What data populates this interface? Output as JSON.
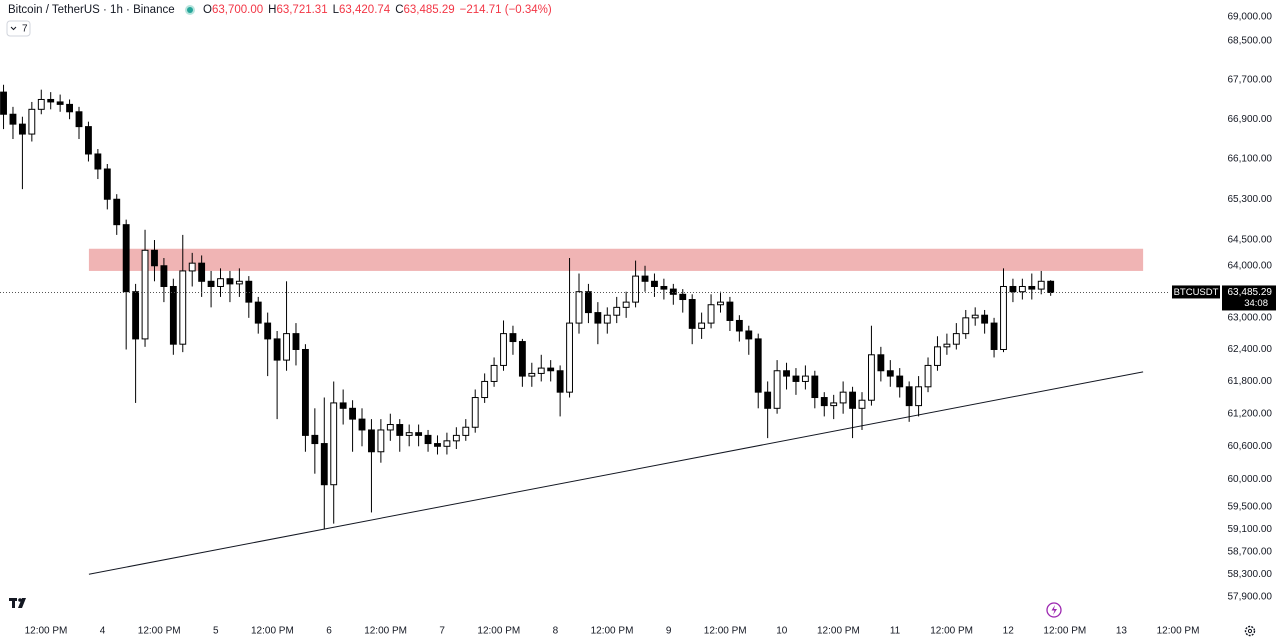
{
  "chart_data": {
    "type": "candlestick",
    "title": "Bitcoin / TetherUS · 1h · Binance",
    "ohlc": [
      {
        "label": "O",
        "value": "63,700.00"
      },
      {
        "label": "H",
        "value": "63,721.31"
      },
      {
        "label": "L",
        "value": "63,420.74"
      },
      {
        "label": "C",
        "value": "63,485.29"
      }
    ],
    "change": "−214.71 (−0.34%)",
    "indicator_count": "7",
    "price_tag": {
      "symbol": "BTCUSDT",
      "price": "63,485.29",
      "countdown": "34:08"
    },
    "log_scale": true,
    "up_color": "#ffffff",
    "down_color": "#000000",
    "x": [
      -9,
      -7,
      -5,
      -3,
      -1,
      1,
      3,
      5,
      7,
      9,
      11,
      13,
      15,
      17,
      19,
      21,
      23,
      25,
      27,
      29,
      31,
      33,
      35,
      37,
      39,
      41,
      43,
      45,
      47,
      49,
      51,
      53,
      55,
      57,
      59,
      61,
      63,
      65,
      67,
      69,
      71,
      73,
      75,
      77,
      79,
      81,
      83,
      85,
      87,
      89,
      91,
      93,
      95,
      97,
      99,
      101,
      103,
      105,
      107,
      109,
      111,
      113,
      115,
      117,
      119,
      121,
      123,
      125,
      127,
      129,
      131,
      133,
      135,
      137,
      139,
      141,
      143,
      145,
      147,
      149,
      151,
      153,
      155,
      157,
      159,
      161,
      163,
      165,
      167,
      169,
      171,
      173,
      175,
      177,
      179,
      181,
      183,
      185,
      187,
      189,
      191,
      193,
      195,
      197,
      199,
      201,
      203,
      205,
      207,
      209,
      211,
      213
    ],
    "open": [
      67450,
      67000,
      66800,
      66600,
      67100,
      67300,
      67250,
      67200,
      67050,
      66750,
      66200,
      65900,
      65300,
      64800,
      63500,
      62600,
      64300,
      64000,
      63600,
      62500,
      63900,
      64050,
      63700,
      63600,
      63750,
      63650,
      63700,
      63300,
      62900,
      62600,
      62200,
      62700,
      62400,
      60800,
      60650,
      59900,
      61400,
      61300,
      61100,
      60900,
      60500,
      60900,
      61000,
      60800,
      60850,
      60800,
      60650,
      60600,
      60700,
      60800,
      60950,
      61500,
      61800,
      62100,
      62700,
      62550,
      61900,
      61950,
      62050,
      62000,
      61600,
      62900,
      63500,
      63100,
      62900,
      63050,
      63200,
      63300,
      63800,
      63700,
      63600,
      63550,
      63450,
      63350,
      62800,
      62900,
      63250,
      63300,
      62950,
      62750,
      62600,
      61600,
      61300,
      62000,
      61900,
      61800,
      61900,
      61500,
      61350,
      61400,
      61600,
      61300,
      61450,
      62300,
      62000,
      61900,
      61700,
      61350,
      61700,
      62100,
      62450,
      62500,
      62700,
      63000,
      63050,
      62900,
      62400,
      63600,
      63500,
      63600,
      63550,
      63700
    ],
    "high": [
      67600,
      67150,
      66950,
      67250,
      67500,
      67450,
      67400,
      67300,
      67150,
      66850,
      66300,
      66000,
      65400,
      64900,
      63650,
      64700,
      64500,
      64150,
      63750,
      64600,
      64250,
      64200,
      63900,
      63950,
      63900,
      63950,
      63800,
      63400,
      63100,
      62750,
      63700,
      62900,
      62500,
      61300,
      61500,
      61800,
      61650,
      61450,
      61300,
      61100,
      61100,
      61200,
      61100,
      61000,
      61000,
      60900,
      60800,
      60850,
      60950,
      61100,
      61650,
      61950,
      62250,
      62950,
      62850,
      62600,
      62150,
      62300,
      62200,
      62100,
      64150,
      63850,
      63650,
      63300,
      63200,
      63400,
      63500,
      64100,
      64000,
      63850,
      63750,
      63650,
      63550,
      63450,
      63100,
      63450,
      63500,
      63400,
      63050,
      62850,
      62700,
      61800,
      62200,
      62150,
      62050,
      62100,
      62000,
      61600,
      61550,
      61800,
      61700,
      61600,
      62850,
      62450,
      62200,
      62050,
      61800,
      61900,
      62250,
      62650,
      62700,
      62900,
      63150,
      63200,
      63150,
      63000,
      63950,
      63750,
      63750,
      63850,
      63900,
      63721.31
    ],
    "low": [
      66700,
      66500,
      65500,
      66450,
      67000,
      67100,
      67050,
      66900,
      66500,
      66050,
      65700,
      65100,
      64600,
      62400,
      61400,
      62450,
      63700,
      63300,
      62300,
      62350,
      63600,
      63400,
      63200,
      63400,
      63300,
      63400,
      63000,
      62700,
      61900,
      61100,
      62000,
      62100,
      60500,
      60100,
      59100,
      59200,
      61000,
      60500,
      60600,
      59400,
      60300,
      60700,
      60500,
      60600,
      60600,
      60500,
      60450,
      60450,
      60550,
      60700,
      60850,
      61400,
      61700,
      62000,
      62300,
      61700,
      61700,
      61800,
      61800,
      61150,
      61500,
      62700,
      62900,
      62500,
      62700,
      62900,
      63000,
      63200,
      63500,
      63400,
      63350,
      63250,
      63100,
      62500,
      62600,
      62800,
      63100,
      62750,
      62550,
      62300,
      61300,
      60750,
      61200,
      61650,
      61550,
      61650,
      61300,
      61150,
      61100,
      61200,
      60750,
      60900,
      61350,
      61800,
      61700,
      61500,
      61050,
      61150,
      61600,
      62000,
      62300,
      62400,
      62600,
      62850,
      62700,
      62250,
      62350,
      63300,
      63350,
      63350,
      63450,
      63420.74
    ],
    "close": [
      67000,
      66800,
      66600,
      67100,
      67300,
      67250,
      67200,
      67050,
      66750,
      66200,
      65900,
      65300,
      64800,
      63500,
      62600,
      64300,
      64000,
      63600,
      62500,
      63900,
      64050,
      63700,
      63600,
      63750,
      63650,
      63700,
      63300,
      62900,
      62600,
      62200,
      62700,
      62400,
      60800,
      60650,
      59900,
      61400,
      61300,
      61100,
      60900,
      60500,
      60900,
      61000,
      60800,
      60850,
      60800,
      60650,
      60600,
      60700,
      60800,
      60950,
      61500,
      61800,
      62100,
      62700,
      62550,
      61900,
      61950,
      62050,
      62000,
      61600,
      62900,
      63500,
      63100,
      62900,
      63050,
      63200,
      63300,
      63800,
      63700,
      63600,
      63550,
      63450,
      63350,
      62800,
      62900,
      63250,
      63300,
      62950,
      62750,
      62600,
      61600,
      61300,
      62000,
      61900,
      61800,
      61900,
      61500,
      61350,
      61400,
      61600,
      61300,
      61450,
      62300,
      62000,
      61900,
      61700,
      61350,
      61700,
      62100,
      62450,
      62500,
      62700,
      63000,
      63050,
      62900,
      62400,
      63600,
      63500,
      63600,
      63550,
      63700,
      63485.29
    ],
    "zone": {
      "x": [
        9.1,
        232.6
      ],
      "y": [
        63900,
        64330
      ],
      "color": "#f0b4b4"
    },
    "trendline": {
      "x": [
        9.1,
        232.6
      ],
      "y": [
        58300,
        61980
      ]
    },
    "xlim": [
      -9.75,
      248.9
    ],
    "ylim": [
      57534,
      69355
    ],
    "xticks": [
      {
        "value": 0,
        "label": "12:00 PM"
      },
      {
        "value": 12,
        "label": "4"
      },
      {
        "value": 24,
        "label": "12:00 PM"
      },
      {
        "value": 36,
        "label": "5"
      },
      {
        "value": 48,
        "label": "12:00 PM"
      },
      {
        "value": 60,
        "label": "6"
      },
      {
        "value": 72,
        "label": "12:00 PM"
      },
      {
        "value": 84,
        "label": "7"
      },
      {
        "value": 96,
        "label": "12:00 PM"
      },
      {
        "value": 108,
        "label": "8"
      },
      {
        "value": 120,
        "label": "12:00 PM"
      },
      {
        "value": 132,
        "label": "9"
      },
      {
        "value": 144,
        "label": "12:00 PM"
      },
      {
        "value": 156,
        "label": "10"
      },
      {
        "value": 168,
        "label": "12:00 PM"
      },
      {
        "value": 180,
        "label": "11"
      },
      {
        "value": 192,
        "label": "12:00 PM"
      },
      {
        "value": 204,
        "label": "12"
      },
      {
        "value": 216,
        "label": "12:00 PM"
      },
      {
        "value": 228,
        "label": "13"
      },
      {
        "value": 240,
        "label": "12:00 PM"
      }
    ],
    "yticks": [
      {
        "value": 69000,
        "label": "69,000.00"
      },
      {
        "value": 68500,
        "label": "68,500.00"
      },
      {
        "value": 67700,
        "label": "67,700.00"
      },
      {
        "value": 66900,
        "label": "66,900.00"
      },
      {
        "value": 66100,
        "label": "66,100.00"
      },
      {
        "value": 65300,
        "label": "65,300.00"
      },
      {
        "value": 64500,
        "label": "64,500.00"
      },
      {
        "value": 64000,
        "label": "64,000.00"
      },
      {
        "value": 63000,
        "label": "63,000.00"
      },
      {
        "value": 62400,
        "label": "62,400.00"
      },
      {
        "value": 61800,
        "label": "61,800.00"
      },
      {
        "value": 61200,
        "label": "61,200.00"
      },
      {
        "value": 60600,
        "label": "60,600.00"
      },
      {
        "value": 60000,
        "label": "60,000.00"
      },
      {
        "value": 59500,
        "label": "59,500.00"
      },
      {
        "value": 59100,
        "label": "59,100.00"
      },
      {
        "value": 58700,
        "label": "58,700.00"
      },
      {
        "value": 58300,
        "label": "58,300.00"
      },
      {
        "value": 57900,
        "label": "57,900.00"
      }
    ]
  }
}
